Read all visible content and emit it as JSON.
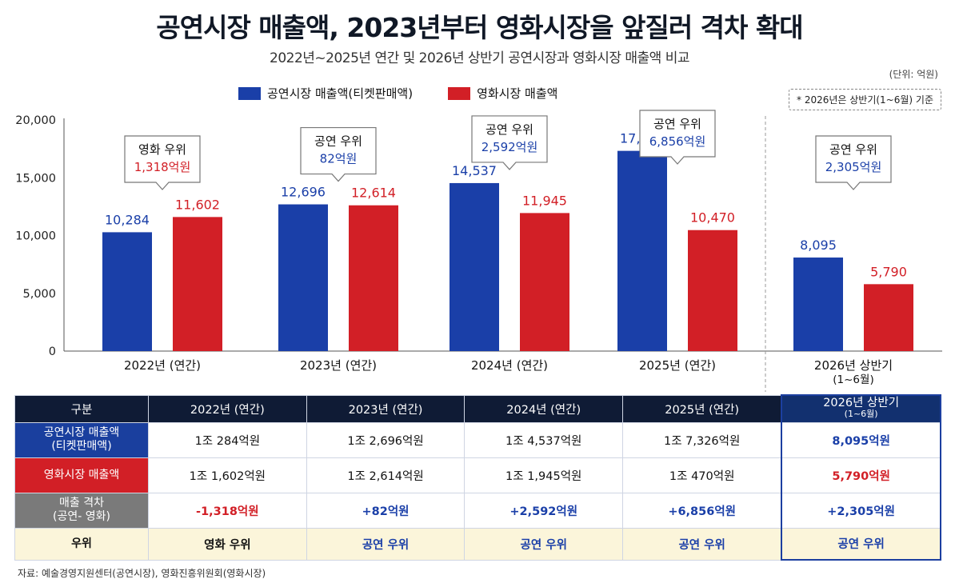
{
  "title": "공연시장 매출액, 2023년부터 영화시장을 앞질러 격차 확대",
  "subtitle": "2022년~2025년 연간 및 2026년 상반기 공연시장과 영화시장 매출액 비교",
  "unit": "(단위: 억원)",
  "note": "* 2026년은 상반기(1~6월) 기준",
  "legend": {
    "performance": "공연시장 매출액(티켓판매액)",
    "film": "영화시장 매출액"
  },
  "colors": {
    "performance": "#1a3fa8",
    "film": "#d21f26"
  },
  "chart_data": {
    "type": "bar",
    "categories": [
      "2022년 (연간)",
      "2023년 (연간)",
      "2024년 (연간)",
      "2025년 (연간)",
      "2026년 상반기\n(1~6월)"
    ],
    "series": [
      {
        "name": "공연시장 매출액(티켓판매액)",
        "values": [
          10284,
          12696,
          14537,
          17326,
          8095
        ],
        "labels": [
          "10,284",
          "12,696",
          "14,537",
          "17,326",
          "8,095"
        ]
      },
      {
        "name": "영화시장 매출액",
        "values": [
          11602,
          12614,
          11945,
          10470,
          5790
        ],
        "labels": [
          "11,602",
          "12,614",
          "11,945",
          "10,470",
          "5,790"
        ]
      }
    ],
    "ylim": [
      0,
      20000
    ],
    "yticks": [
      0,
      5000,
      10000,
      15000,
      20000
    ],
    "ytick_labels": [
      "0",
      "5,000",
      "10,000",
      "15,000",
      "20,000"
    ],
    "grid": false,
    "legend_position": "top",
    "annotations": [
      {
        "title": "영화 우위",
        "value": "1,318억원",
        "winner": "film"
      },
      {
        "title": "공연 우위",
        "value": "82억원",
        "winner": "performance"
      },
      {
        "title": "공연 우위",
        "value": "2,592억원",
        "winner": "performance"
      },
      {
        "title": "공연 우위",
        "value": "6,856억원",
        "winner": "performance"
      },
      {
        "title": "공연 우위",
        "value": "2,305억원",
        "winner": "performance"
      }
    ]
  },
  "table": {
    "header": [
      "구분",
      "2022년 (연간)",
      "2023년 (연간)",
      "2024년 (연간)",
      "2025년 (연간)",
      "2026년 상반기",
      "(1~6월)"
    ],
    "rows": {
      "performance": {
        "label1": "공연시장 매출액",
        "label2": "(티켓판매액)",
        "cells": [
          "1조 284억원",
          "1조 2,696억원",
          "1조 4,537억원",
          "1조 7,326억원",
          "8,095억원"
        ]
      },
      "film": {
        "label": "영화시장 매출액",
        "cells": [
          "1조 1,602억원",
          "1조 2,614억원",
          "1조 1,945억원",
          "1조 470억원",
          "5,790억원"
        ]
      },
      "gap": {
        "label1": "매출 격차",
        "label2": "(공연- 영화)",
        "cells": [
          "-1,318억원",
          "+82억원",
          "+2,592억원",
          "+6,856억원",
          "+2,305억원"
        ]
      },
      "winner": {
        "label": "우위",
        "cells": [
          "영화 우위",
          "공연 우위",
          "공연 우위",
          "공연 우위",
          "공연 우위"
        ]
      }
    }
  },
  "source": "자료: 예술경영지원센터(공연시장), 영화진흥위원회(영화시장)"
}
